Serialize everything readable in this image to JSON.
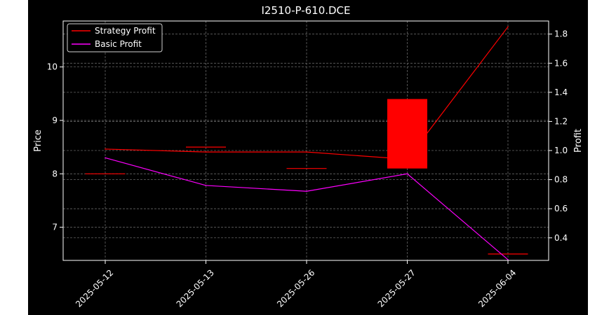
{
  "chart_data": {
    "type": "candlestick-line",
    "title": "I2510-P-610.DCE",
    "ylabel": "Price",
    "y2label": "Profit",
    "categories": [
      "2025-05-12",
      "2025-05-13",
      "2025-05-26",
      "2025-05-27",
      "2025-06-04"
    ],
    "ylim": [
      6.38,
      10.86
    ],
    "y2lim": [
      0.245,
      1.89
    ],
    "yticks": [
      7,
      8,
      9,
      10
    ],
    "y2ticks": [
      0.4,
      0.6,
      0.8,
      1.0,
      1.2,
      1.4,
      1.6,
      1.8
    ],
    "grid": true,
    "legend_position": "upper-left",
    "candles": [
      {
        "x": "2025-05-12",
        "open": 8.0,
        "close": 8.0,
        "high": 8.0,
        "low": 8.0
      },
      {
        "x": "2025-05-13",
        "open": 8.5,
        "close": 8.5,
        "high": 8.5,
        "low": 8.5
      },
      {
        "x": "2025-05-26",
        "open": 8.1,
        "close": 8.1,
        "high": 8.1,
        "low": 8.1
      },
      {
        "x": "2025-05-27",
        "open": 9.4,
        "close": 8.1,
        "high": 9.4,
        "low": 8.1
      },
      {
        "x": "2025-06-04",
        "open": 6.5,
        "close": 6.5,
        "high": 6.5,
        "low": 6.5
      }
    ],
    "series": [
      {
        "name": "Strategy Profit",
        "color": "#ff0000",
        "values": [
          1.01,
          0.99,
          0.99,
          0.94,
          1.85
        ]
      },
      {
        "name": "Basic Profit",
        "color": "#ff00ff",
        "values": [
          0.95,
          0.76,
          0.72,
          0.84,
          0.25
        ]
      }
    ],
    "colors": {
      "background": "#000000",
      "frame": "#ffffff",
      "grid": "#666666",
      "text": "#ffffff",
      "candle": "#ff0000"
    }
  }
}
